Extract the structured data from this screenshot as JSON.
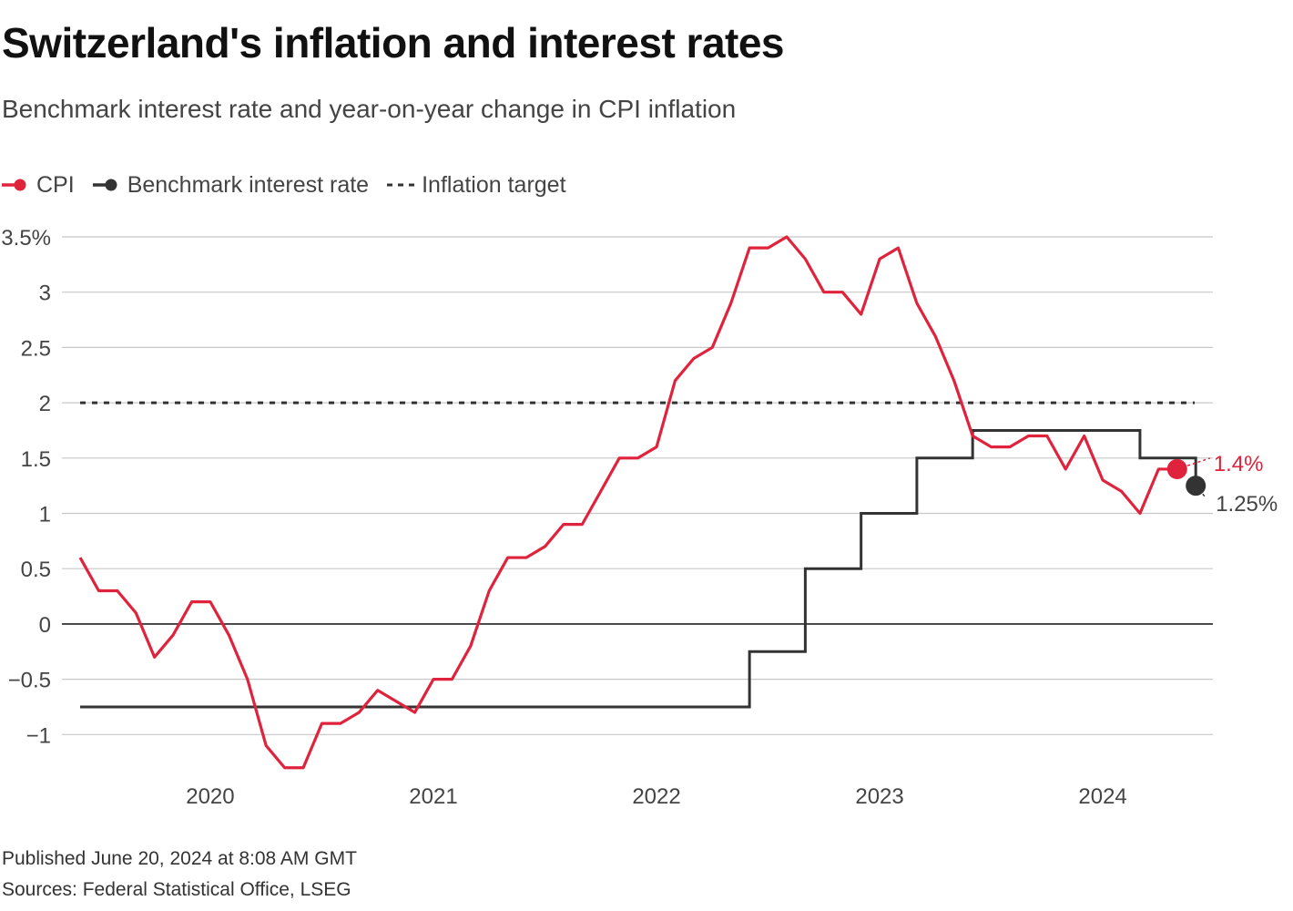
{
  "header": {
    "title": "Switzerland's inflation and interest rates",
    "subtitle": "Benchmark interest rate and year-on-year change in CPI inflation"
  },
  "legend": {
    "cpi": "CPI",
    "rate": "Benchmark interest rate",
    "target": "Inflation target"
  },
  "footer": {
    "published": "Published June 20, 2024 at 8:08 AM GMT",
    "sources": "Sources: Federal Statistical Office, LSEG"
  },
  "colors": {
    "cpi": "#e0233c",
    "rate": "#333333",
    "target": "#333333",
    "grid": "#c8c8c8",
    "zero": "#222222"
  },
  "chart_data": {
    "type": "line",
    "title": "Switzerland's inflation and interest rates",
    "xlabel": "",
    "ylabel": "",
    "xlim": [
      "2019-06",
      "2024-12"
    ],
    "ylim": [
      -1.4,
      3.6
    ],
    "y_ticks": [
      -1,
      -0.5,
      0,
      0.5,
      1,
      1.5,
      2,
      2.5,
      3,
      3.5
    ],
    "y_tick_labels": [
      "−1",
      "−0.5",
      "0",
      "0.5",
      "1",
      "1.5",
      "2",
      "2.5",
      "3",
      "3.5%"
    ],
    "x_ticks": [
      2020,
      2021,
      2022,
      2023,
      2024
    ],
    "x_tick_labels": [
      "2020",
      "2021",
      "2022",
      "2023",
      "2024"
    ],
    "series": [
      {
        "name": "CPI",
        "kind": "line",
        "x": [
          "2019-06",
          "2019-07",
          "2019-08",
          "2019-09",
          "2019-10",
          "2019-11",
          "2019-12",
          "2020-01",
          "2020-02",
          "2020-03",
          "2020-04",
          "2020-05",
          "2020-06",
          "2020-07",
          "2020-08",
          "2020-09",
          "2020-10",
          "2020-11",
          "2020-12",
          "2021-01",
          "2021-02",
          "2021-03",
          "2021-04",
          "2021-05",
          "2021-06",
          "2021-07",
          "2021-08",
          "2021-09",
          "2021-10",
          "2021-11",
          "2021-12",
          "2022-01",
          "2022-02",
          "2022-03",
          "2022-04",
          "2022-05",
          "2022-06",
          "2022-07",
          "2022-08",
          "2022-09",
          "2022-10",
          "2022-11",
          "2022-12",
          "2023-01",
          "2023-02",
          "2023-03",
          "2023-04",
          "2023-05",
          "2023-06",
          "2023-07",
          "2023-08",
          "2023-09",
          "2023-10",
          "2023-11",
          "2023-12",
          "2024-01",
          "2024-02",
          "2024-03",
          "2024-04",
          "2024-05"
        ],
        "values": [
          0.6,
          0.3,
          0.3,
          0.1,
          -0.3,
          -0.1,
          0.2,
          0.2,
          -0.1,
          -0.5,
          -1.1,
          -1.3,
          -1.3,
          -0.9,
          -0.9,
          -0.8,
          -0.6,
          -0.7,
          -0.8,
          -0.5,
          -0.5,
          -0.2,
          0.3,
          0.6,
          0.6,
          0.7,
          0.9,
          0.9,
          1.2,
          1.5,
          1.5,
          1.6,
          2.2,
          2.4,
          2.5,
          2.9,
          3.4,
          3.4,
          3.5,
          3.3,
          3.0,
          3.0,
          2.8,
          3.3,
          3.4,
          2.9,
          2.6,
          2.2,
          1.7,
          1.6,
          1.6,
          1.7,
          1.7,
          1.4,
          1.7,
          1.3,
          1.2,
          1.0,
          1.4,
          1.4
        ]
      },
      {
        "name": "Benchmark interest rate",
        "kind": "step",
        "x": [
          "2019-06",
          "2022-06",
          "2022-09",
          "2022-12",
          "2023-03",
          "2023-06",
          "2023-09",
          "2023-12",
          "2024-03",
          "2024-06"
        ],
        "values": [
          -0.75,
          -0.25,
          0.5,
          1.0,
          1.5,
          1.75,
          1.75,
          1.75,
          1.5,
          1.25
        ]
      },
      {
        "name": "Inflation target",
        "kind": "hline",
        "value": 2.0
      }
    ],
    "annotations": [
      {
        "series": "CPI",
        "x": "2024-05",
        "value": 1.4,
        "label": "1.4%"
      },
      {
        "series": "Benchmark interest rate",
        "x": "2024-06",
        "value": 1.25,
        "label": "1.25%"
      }
    ],
    "grid": true,
    "legend_position": "top-left"
  }
}
